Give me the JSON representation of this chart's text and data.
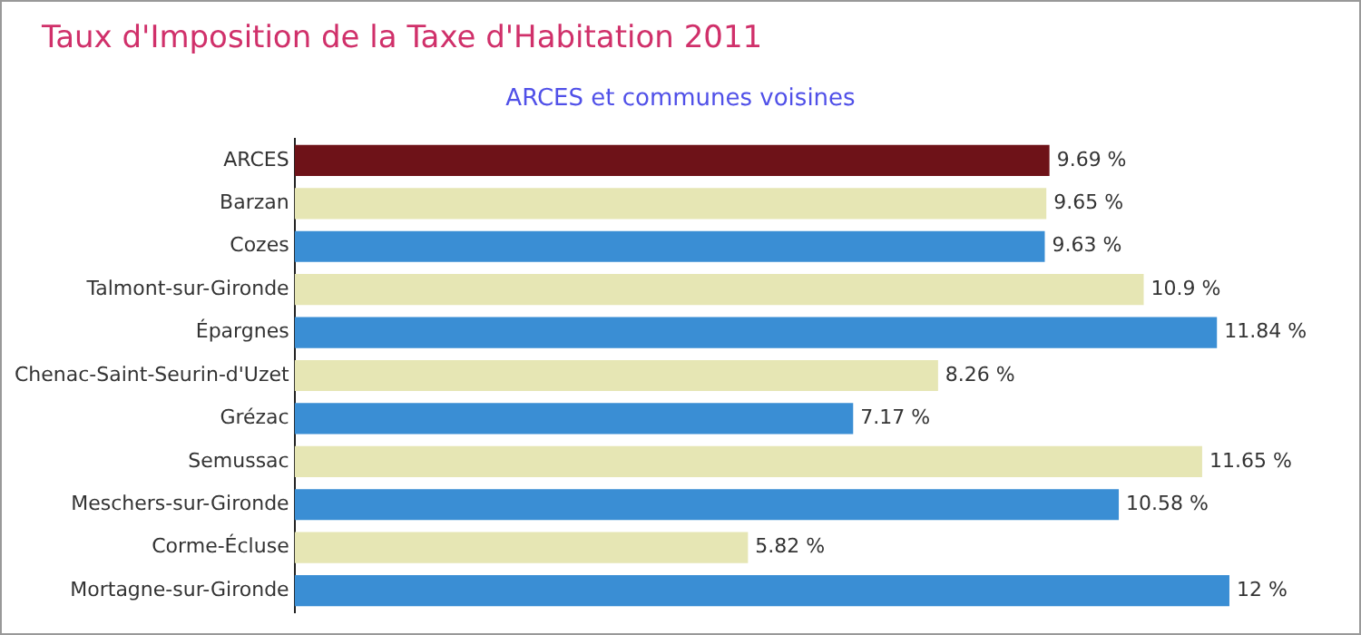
{
  "chart_data": {
    "type": "bar",
    "orientation": "horizontal",
    "title": "Taux d'Imposition de la Taxe d'Habitation 2011",
    "subtitle": "ARCES et communes voisines",
    "categories": [
      "ARCES",
      "Barzan",
      "Cozes",
      "Talmont-sur-Gironde",
      "Épargnes",
      "Chenac-Saint-Seurin-d'Uzet",
      "Grézac",
      "Semussac",
      "Meschers-sur-Gironde",
      "Corme-Écluse",
      "Mortagne-sur-Gironde"
    ],
    "values": [
      9.69,
      9.65,
      9.63,
      10.9,
      11.84,
      8.26,
      7.17,
      11.65,
      10.58,
      5.82,
      12
    ],
    "value_labels": [
      "9.69 %",
      "9.65 %",
      "9.63 %",
      "10.9 %",
      "11.84 %",
      "8.26 %",
      "7.17 %",
      "11.65 %",
      "10.58 %",
      "5.82 %",
      "12 %"
    ],
    "colors": [
      "#6e1218",
      "#e6e6b4",
      "#3a8ed4",
      "#e6e6b4",
      "#3a8ed4",
      "#e6e6b4",
      "#3a8ed4",
      "#e6e6b4",
      "#3a8ed4",
      "#e6e6b4",
      "#3a8ed4"
    ],
    "tick_labels": "y"
  }
}
